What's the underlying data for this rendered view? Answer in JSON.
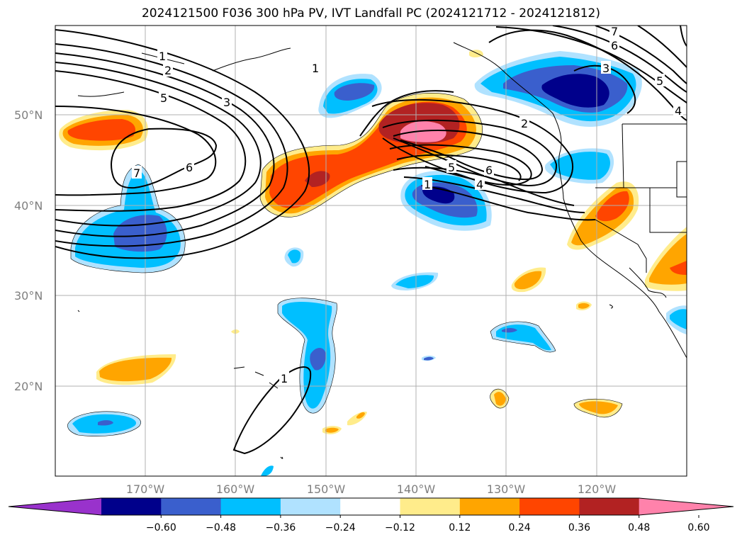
{
  "title": "2024121500 F036 300 hPa PV, IVT Landfall PC (2024121712 - 2024121812)",
  "latitude_labels": [
    "50°N",
    "40°N",
    "30°N",
    "20°N"
  ],
  "longitude_labels": [
    "170°W",
    "160°W",
    "150°W",
    "140°W",
    "130°W",
    "120°W"
  ],
  "colorbar": {
    "tick_labels": [
      "−0.60",
      "−0.48",
      "−0.36",
      "−0.24",
      "−0.12",
      "0.12",
      "0.24",
      "0.36",
      "0.48",
      "0.60"
    ],
    "colors": [
      "#9932cc",
      "#00008b",
      "#3a5fcd",
      "#00bfff",
      "#b0e2ff",
      "#ffffff",
      "#ffec8b",
      "#ffa500",
      "#ff4500",
      "#b22222",
      "#ff82ab"
    ],
    "extend": "both"
  },
  "pv_contour_labels": [
    "1",
    "2",
    "3",
    "5",
    "6",
    "7",
    "1",
    "2",
    "4",
    "5",
    "6",
    "1",
    "7",
    "6",
    "5",
    "4",
    "3",
    "1"
  ],
  "shading_colors": {
    "neg_strong": "#00008b",
    "neg_mid": "#3a5fcd",
    "neg_weak": "#00bfff",
    "neg_faint": "#b0e2ff",
    "pos_faint": "#ffec8b",
    "pos_weak": "#ffa500",
    "pos_mid": "#ff4500",
    "pos_strong": "#b22222",
    "pos_max": "#ff82ab"
  }
}
